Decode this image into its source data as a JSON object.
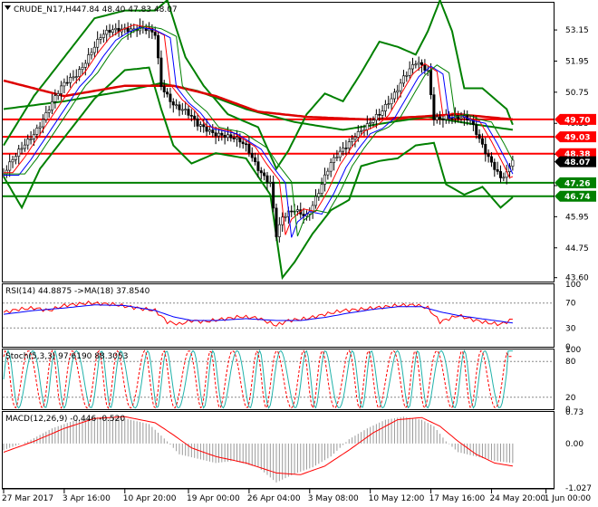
{
  "chart_data": [
    {
      "type": "candlestick",
      "title": "CRUDE_N17,H4",
      "ohlc_text": "47.84 48.40 47.83 48.07",
      "y_ticks": [
        "53.15",
        "51.95",
        "50.75",
        "49.55",
        "48.35",
        "47.15",
        "45.95",
        "44.75",
        "43.60"
      ],
      "y_tick_values": [
        53.15,
        51.95,
        50.75,
        49.55,
        48.35,
        47.15,
        45.95,
        44.75,
        43.6
      ],
      "ylim": [
        43.45,
        54.2
      ],
      "price_tags": [
        {
          "label": "49.70",
          "value": 49.7,
          "color": "#ff0000"
        },
        {
          "label": "49.03",
          "value": 49.03,
          "color": "#ff0000"
        },
        {
          "label": "48.38",
          "value": 48.38,
          "color": "#ff0000"
        },
        {
          "label": "48.07",
          "value": 48.07,
          "color": "#000000"
        },
        {
          "label": "47.26",
          "value": 47.26,
          "color": "#008000"
        },
        {
          "label": "46.74",
          "value": 46.74,
          "color": "#008000"
        }
      ],
      "horizontal_levels": [
        {
          "value": 49.7,
          "color": "#ff0000"
        },
        {
          "value": 49.03,
          "color": "#ff0000"
        },
        {
          "value": 48.38,
          "color": "#ff0000"
        },
        {
          "value": 47.26,
          "color": "#008000"
        },
        {
          "value": 46.74,
          "color": "#008000"
        }
      ],
      "close_series_keypoints": [
        [
          0,
          47.6
        ],
        [
          4,
          48.2
        ],
        [
          8,
          48.9
        ],
        [
          12,
          49.6
        ],
        [
          16,
          50.3
        ],
        [
          20,
          51.0
        ],
        [
          24,
          51.5
        ],
        [
          28,
          52.2
        ],
        [
          32,
          52.8
        ],
        [
          36,
          53.1
        ],
        [
          40,
          53.3
        ],
        [
          45,
          53.2
        ],
        [
          50,
          52.9
        ],
        [
          52,
          51.0
        ],
        [
          56,
          50.4
        ],
        [
          60,
          50.0
        ],
        [
          64,
          49.4
        ],
        [
          68,
          49.3
        ],
        [
          72,
          49.2
        ],
        [
          76,
          48.9
        ],
        [
          80,
          48.6
        ],
        [
          84,
          47.9
        ],
        [
          88,
          47.3
        ],
        [
          90,
          45.2
        ],
        [
          92,
          45.8
        ],
        [
          96,
          46.2
        ],
        [
          100,
          46.1
        ],
        [
          104,
          46.9
        ],
        [
          108,
          47.9
        ],
        [
          112,
          48.6
        ],
        [
          116,
          49.2
        ],
        [
          120,
          49.4
        ],
        [
          124,
          49.8
        ],
        [
          128,
          50.6
        ],
        [
          132,
          51.4
        ],
        [
          136,
          51.8
        ],
        [
          140,
          51.5
        ],
        [
          142,
          49.8
        ],
        [
          146,
          49.9
        ],
        [
          150,
          49.7
        ],
        [
          154,
          49.6
        ],
        [
          158,
          48.8
        ],
        [
          162,
          47.9
        ],
        [
          164,
          47.4
        ],
        [
          166,
          47.5
        ],
        [
          168,
          48.07
        ]
      ],
      "ma_long_red_keypoints": [
        [
          0,
          51.2
        ],
        [
          20,
          50.6
        ],
        [
          40,
          51.0
        ],
        [
          56,
          51.0
        ],
        [
          70,
          50.6
        ],
        [
          84,
          50.0
        ],
        [
          100,
          49.8
        ],
        [
          120,
          49.7
        ],
        [
          136,
          49.8
        ],
        [
          150,
          49.9
        ],
        [
          168,
          49.7
        ]
      ],
      "ma_long_green_keypoints": [
        [
          0,
          50.1
        ],
        [
          20,
          50.4
        ],
        [
          40,
          50.8
        ],
        [
          52,
          51.1
        ],
        [
          64,
          50.8
        ],
        [
          80,
          50.1
        ],
        [
          96,
          49.6
        ],
        [
          112,
          49.3
        ],
        [
          128,
          49.6
        ],
        [
          140,
          49.8
        ],
        [
          156,
          49.5
        ],
        [
          168,
          49.3
        ]
      ],
      "bollinger_upper_keypoints": [
        [
          0,
          48.7
        ],
        [
          10,
          50.6
        ],
        [
          20,
          52.1
        ],
        [
          30,
          53.6
        ],
        [
          40,
          53.9
        ],
        [
          50,
          53.9
        ],
        [
          54,
          54.3
        ],
        [
          60,
          52.1
        ],
        [
          66,
          51.0
        ],
        [
          74,
          49.9
        ],
        [
          84,
          49.4
        ],
        [
          90,
          47.8
        ],
        [
          94,
          48.5
        ],
        [
          100,
          49.9
        ],
        [
          106,
          50.7
        ],
        [
          112,
          50.4
        ],
        [
          118,
          51.5
        ],
        [
          124,
          52.7
        ],
        [
          130,
          52.5
        ],
        [
          136,
          52.2
        ],
        [
          140,
          53.1
        ],
        [
          144,
          54.3
        ],
        [
          148,
          53.1
        ],
        [
          152,
          50.9
        ],
        [
          158,
          50.9
        ],
        [
          166,
          50.1
        ],
        [
          168,
          49.5
        ]
      ],
      "bollinger_lower_keypoints": [
        [
          0,
          47.5
        ],
        [
          6,
          46.3
        ],
        [
          12,
          47.8
        ],
        [
          20,
          49.0
        ],
        [
          30,
          50.5
        ],
        [
          40,
          51.6
        ],
        [
          48,
          51.7
        ],
        [
          52,
          50.1
        ],
        [
          56,
          48.7
        ],
        [
          62,
          48.0
        ],
        [
          70,
          48.4
        ],
        [
          80,
          48.2
        ],
        [
          88,
          46.8
        ],
        [
          92,
          43.6
        ],
        [
          96,
          44.2
        ],
        [
          102,
          45.3
        ],
        [
          108,
          46.2
        ],
        [
          114,
          46.6
        ],
        [
          118,
          47.9
        ],
        [
          124,
          48.1
        ],
        [
          130,
          48.2
        ],
        [
          136,
          48.7
        ],
        [
          142,
          48.8
        ],
        [
          146,
          47.2
        ],
        [
          152,
          46.8
        ],
        [
          158,
          47.1
        ],
        [
          164,
          46.3
        ],
        [
          168,
          46.7
        ]
      ],
      "x_labels": [
        "27 Mar 2017",
        "3 Apr 16:00",
        "10 Apr 20:00",
        "19 Apr 00:00",
        "26 Apr 04:00",
        "3 May 08:00",
        "10 May 12:00",
        "17 May 16:00",
        "24 May 20:00",
        "1 Jun 00:00"
      ],
      "x_label_bars": [
        0,
        20,
        40,
        61,
        81,
        101,
        121,
        141,
        161,
        179
      ],
      "x_range": [
        0,
        180
      ]
    },
    {
      "type": "line",
      "title": "RSI(14) 44.8875 ->MA(18) 37.8540",
      "y_ticks": [
        "100",
        "70",
        "30",
        "0"
      ],
      "y_tick_values": [
        100,
        70,
        30,
        0
      ],
      "ylim": [
        0,
        100
      ],
      "levels": [
        70,
        30
      ],
      "series": [
        {
          "color": "#ff0000",
          "keypoints": [
            [
              0,
              55
            ],
            [
              5,
              60
            ],
            [
              10,
              62
            ],
            [
              15,
              58
            ],
            [
              20,
              66
            ],
            [
              28,
              70
            ],
            [
              36,
              68
            ],
            [
              44,
              62
            ],
            [
              50,
              58
            ],
            [
              54,
              40
            ],
            [
              58,
              36
            ],
            [
              62,
              42
            ],
            [
              66,
              40
            ],
            [
              72,
              44
            ],
            [
              78,
              48
            ],
            [
              84,
              46
            ],
            [
              90,
              34
            ],
            [
              94,
              42
            ],
            [
              100,
              45
            ],
            [
              106,
              52
            ],
            [
              112,
              58
            ],
            [
              118,
              60
            ],
            [
              124,
              63
            ],
            [
              130,
              66
            ],
            [
              136,
              67
            ],
            [
              140,
              62
            ],
            [
              144,
              40
            ],
            [
              150,
              50
            ],
            [
              156,
              42
            ],
            [
              160,
              38
            ],
            [
              164,
              36
            ],
            [
              168,
              44
            ]
          ]
        },
        {
          "color": "#0000ff",
          "keypoints": [
            [
              0,
              52
            ],
            [
              10,
              58
            ],
            [
              20,
              62
            ],
            [
              30,
              67
            ],
            [
              40,
              66
            ],
            [
              50,
              58
            ],
            [
              56,
              48
            ],
            [
              62,
              42
            ],
            [
              70,
              42
            ],
            [
              80,
              45
            ],
            [
              90,
              42
            ],
            [
              98,
              42
            ],
            [
              106,
              47
            ],
            [
              114,
              54
            ],
            [
              122,
              60
            ],
            [
              130,
              64
            ],
            [
              138,
              64
            ],
            [
              144,
              56
            ],
            [
              150,
              50
            ],
            [
              156,
              46
            ],
            [
              162,
              42
            ],
            [
              168,
              38
            ]
          ]
        }
      ]
    },
    {
      "type": "line",
      "title": "Stoch(5,3,3) 97.6190 88.3053",
      "y_ticks": [
        "100",
        "80",
        "20",
        "0"
      ],
      "y_tick_values": [
        100,
        80,
        20,
        0
      ],
      "ylim": [
        0,
        100
      ],
      "levels": [
        80,
        20
      ],
      "series": [
        {
          "color": "#20b2aa",
          "oscillation": {
            "period": 7.5,
            "phase": 0.0,
            "last": 97.6
          }
        },
        {
          "color": "#ff0000",
          "dashed": true,
          "oscillation": {
            "period": 7.5,
            "phase": 0.9,
            "last": 88.3
          }
        }
      ]
    },
    {
      "type": "bar",
      "title": "MACD(12,26,9) -0.446 -0.520",
      "y_ticks": [
        "0.73",
        "0.00",
        "-1.027"
      ],
      "y_tick_values": [
        0.73,
        0.0,
        -1.027
      ],
      "ylim": [
        -1.027,
        0.73
      ],
      "histogram_keypoints": [
        [
          0,
          -0.15
        ],
        [
          8,
          0.05
        ],
        [
          16,
          0.35
        ],
        [
          24,
          0.55
        ],
        [
          32,
          0.62
        ],
        [
          40,
          0.58
        ],
        [
          48,
          0.45
        ],
        [
          54,
          0.05
        ],
        [
          58,
          -0.25
        ],
        [
          64,
          -0.35
        ],
        [
          70,
          -0.45
        ],
        [
          76,
          -0.4
        ],
        [
          84,
          -0.55
        ],
        [
          90,
          -0.9
        ],
        [
          96,
          -0.7
        ],
        [
          102,
          -0.55
        ],
        [
          108,
          -0.3
        ],
        [
          114,
          0.1
        ],
        [
          120,
          0.35
        ],
        [
          126,
          0.55
        ],
        [
          132,
          0.62
        ],
        [
          138,
          0.55
        ],
        [
          142,
          0.4
        ],
        [
          146,
          0.05
        ],
        [
          150,
          -0.2
        ],
        [
          156,
          -0.3
        ],
        [
          162,
          -0.4
        ],
        [
          168,
          -0.45
        ]
      ],
      "signal_keypoints": [
        [
          0,
          -0.2
        ],
        [
          10,
          0.05
        ],
        [
          20,
          0.35
        ],
        [
          30,
          0.58
        ],
        [
          40,
          0.62
        ],
        [
          50,
          0.48
        ],
        [
          56,
          0.2
        ],
        [
          62,
          -0.1
        ],
        [
          70,
          -0.3
        ],
        [
          80,
          -0.45
        ],
        [
          90,
          -0.68
        ],
        [
          98,
          -0.72
        ],
        [
          106,
          -0.52
        ],
        [
          114,
          -0.15
        ],
        [
          122,
          0.25
        ],
        [
          130,
          0.55
        ],
        [
          138,
          0.6
        ],
        [
          144,
          0.4
        ],
        [
          150,
          0.05
        ],
        [
          156,
          -0.25
        ],
        [
          162,
          -0.45
        ],
        [
          168,
          -0.52
        ]
      ]
    }
  ]
}
